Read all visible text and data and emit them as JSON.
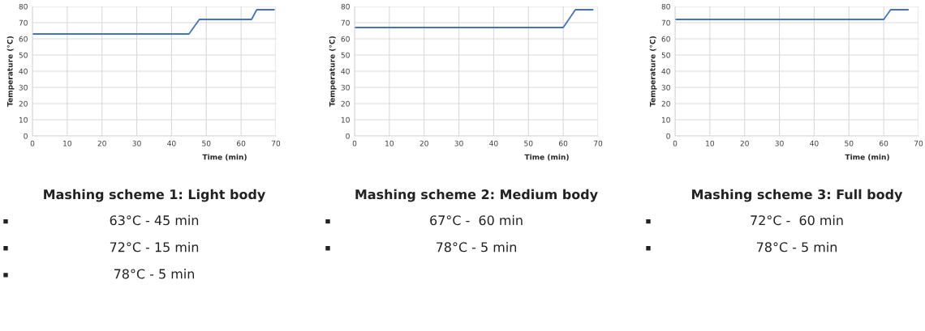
{
  "chart_data": [
    {
      "type": "line",
      "title": "Mashing scheme 1: Light body",
      "xlabel": "Time (min)",
      "ylabel": "Temperature (°C)",
      "annotations": [
        "63°C - 45 min",
        "72°C - 15 min",
        "78°C - 5 min"
      ],
      "series": [
        {
          "color": "#4472c4",
          "x": [
            0,
            45,
            48,
            63,
            64.5,
            69.5
          ],
          "values": [
            63,
            63,
            72,
            72,
            78,
            78
          ]
        }
      ],
      "xlim": [
        0,
        70
      ],
      "xticks": [
        0,
        10,
        20,
        30,
        40,
        50,
        60,
        70
      ],
      "ylim": [
        0,
        80
      ],
      "yticks": [
        0,
        10,
        20,
        30,
        40,
        50,
        60,
        70,
        80
      ],
      "grid": true,
      "marker": "none",
      "line_style": "solid"
    },
    {
      "type": "line",
      "title": "Mashing scheme 2: Medium body",
      "xlabel": "Time (min)",
      "ylabel": "Temperature (°C)",
      "annotations": [
        "67°C -  60 min",
        "78°C - 5 min"
      ],
      "series": [
        {
          "color": "#4472c4",
          "x": [
            0,
            60,
            63.5,
            68.5
          ],
          "values": [
            67,
            67,
            78,
            78
          ]
        }
      ],
      "xlim": [
        0,
        70
      ],
      "xticks": [
        0,
        10,
        20,
        30,
        40,
        50,
        60,
        70
      ],
      "ylim": [
        0,
        80
      ],
      "yticks": [
        0,
        10,
        20,
        30,
        40,
        50,
        60,
        70,
        80
      ],
      "grid": true,
      "marker": "none",
      "line_style": "solid"
    },
    {
      "type": "line",
      "title": "Mashing scheme 3: Full body",
      "xlabel": "Time (min)",
      "ylabel": "Temperature (°C)",
      "annotations": [
        "72°C -  60 min",
        "78°C - 5 min"
      ],
      "series": [
        {
          "color": "#4472c4",
          "x": [
            0,
            60,
            62,
            67
          ],
          "values": [
            72,
            72,
            78,
            78
          ]
        }
      ],
      "xlim": [
        0,
        70
      ],
      "xticks": [
        0,
        10,
        20,
        30,
        40,
        50,
        60,
        70
      ],
      "ylim": [
        0,
        80
      ],
      "yticks": [
        0,
        10,
        20,
        30,
        40,
        50,
        60,
        70,
        80
      ],
      "grid": true,
      "marker": "none",
      "line_style": "solid"
    }
  ]
}
